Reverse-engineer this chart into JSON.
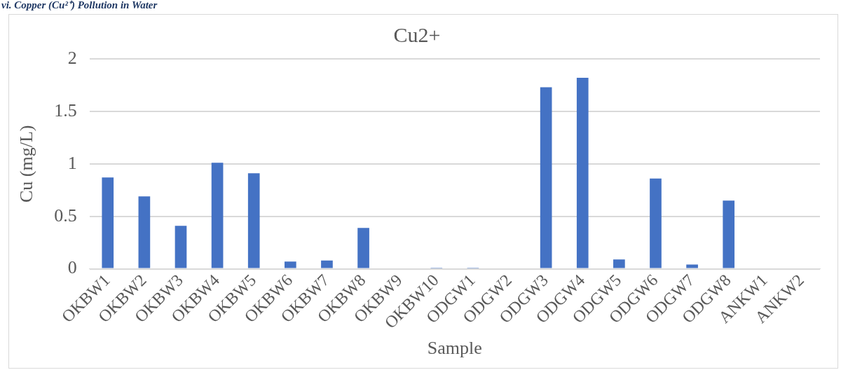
{
  "chart_data": {
    "type": "bar",
    "title": "Cu2+",
    "xlabel": "Sample",
    "ylabel": "Cu (mg/L)",
    "annotations": [
      "vi. Copper (Cu²⁺) Pollution in Water"
    ],
    "categories": [
      "OKBW1",
      "OKBW2",
      "OKBW3",
      "OKBW4",
      "OKBW5",
      "OKBW6",
      "OKBW7",
      "OKBW8",
      "OKBW9",
      "OKBW10",
      "ODGW1",
      "ODGW2",
      "ODGW3",
      "ODGW4",
      "ODGW5",
      "ODGW6",
      "ODGW7",
      "ODGW8",
      "ANKW1",
      "ANKW2"
    ],
    "values": [
      0.87,
      0.69,
      0.41,
      1.01,
      0.91,
      0.07,
      0.08,
      0.39,
      0,
      0.01,
      0.01,
      0,
      1.73,
      1.82,
      0.09,
      0.86,
      0.04,
      0.65,
      0,
      0
    ],
    "color": "#4472c4",
    "ylim": [
      0,
      2
    ],
    "yticks": [
      0,
      0.5,
      1,
      1.5,
      2
    ],
    "grid": "y",
    "legend": false
  }
}
